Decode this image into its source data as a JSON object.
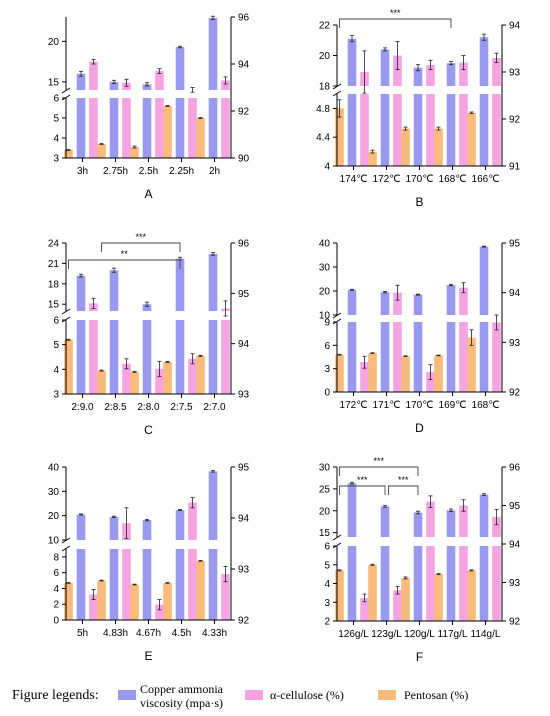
{
  "colors": {
    "viscosity": "#9999f0",
    "cellulose": "#f5a3e3",
    "pentosan": "#f8bb7c",
    "axis": "#000000"
  },
  "chart_data": [
    {
      "panel": "A",
      "type": "bar",
      "categories": [
        "3h",
        "2.75h",
        "2.5h",
        "2.25h",
        "2h"
      ],
      "left_axis": {
        "segments": [
          {
            "range": [
              3,
              6
            ],
            "ticks": [
              3,
              4,
              5,
              6
            ]
          },
          {
            "range": [
              14,
              23
            ],
            "ticks": [
              15,
              20
            ]
          }
        ]
      },
      "right_axis": {
        "range": [
          90,
          96
        ],
        "ticks": [
          90,
          92,
          94,
          96
        ]
      },
      "series": [
        {
          "key": "viscosity",
          "axis": "left",
          "values": [
            16.0,
            15.0,
            14.7,
            19.3,
            22.9
          ],
          "errors": [
            0.3,
            0.2,
            0.2,
            0.1,
            0.2
          ]
        },
        {
          "key": "cellulose",
          "axis": "right",
          "values": [
            94.1,
            93.2,
            93.7,
            92.9,
            93.3
          ],
          "errors": [
            0.1,
            0.15,
            0.1,
            0.1,
            0.15
          ]
        },
        {
          "key": "pentosan",
          "axis": "left",
          "values": [
            3.4,
            3.7,
            3.55,
            5.6,
            5.0
          ],
          "errors": [
            0.02,
            0.02,
            0.05,
            0.02,
            0.02
          ]
        }
      ],
      "significance": []
    },
    {
      "panel": "B",
      "type": "bar",
      "categories": [
        "174℃",
        "172℃",
        "170℃",
        "168℃",
        "166℃"
      ],
      "left_axis": {
        "segments": [
          {
            "range": [
              4.0,
              5.0
            ],
            "ticks": [
              4.0,
              4.4,
              4.8
            ]
          },
          {
            "range": [
              18,
              22
            ],
            "ticks": [
              18,
              20,
              22
            ]
          }
        ]
      },
      "right_axis": {
        "range": [
          91,
          94
        ],
        "ticks": [
          91,
          92,
          93,
          94
        ]
      },
      "series": [
        {
          "key": "viscosity",
          "axis": "left",
          "values": [
            21.1,
            20.4,
            19.2,
            19.5,
            21.2
          ],
          "errors": [
            0.2,
            0.1,
            0.2,
            0.1,
            0.2
          ]
        },
        {
          "key": "cellulose",
          "axis": "right",
          "values": [
            93.0,
            93.35,
            93.15,
            93.2,
            93.3
          ],
          "errors": [
            0.45,
            0.3,
            0.1,
            0.15,
            0.1
          ]
        },
        {
          "key": "pentosan",
          "axis": "left",
          "values": [
            4.8,
            4.2,
            4.52,
            4.52,
            4.74
          ],
          "errors": [
            0.12,
            0.02,
            0.02,
            0.02,
            0.01
          ]
        }
      ],
      "significance": [
        {
          "from": 0,
          "to": 3,
          "label": "***"
        }
      ]
    },
    {
      "panel": "C",
      "type": "bar",
      "categories": [
        "2:9.0",
        "2:8.5",
        "2:8.0",
        "2:7.5",
        "2:7.0"
      ],
      "left_axis": {
        "segments": [
          {
            "range": [
              3,
              6
            ],
            "ticks": [
              3,
              4,
              5,
              6
            ]
          },
          {
            "range": [
              14,
              24
            ],
            "ticks": [
              15,
              18,
              21,
              24
            ]
          }
        ]
      },
      "right_axis": {
        "range": [
          93,
          96
        ],
        "ticks": [
          93,
          94,
          95,
          96
        ]
      },
      "series": [
        {
          "key": "viscosity",
          "axis": "left",
          "values": [
            19.2,
            20.0,
            15.0,
            21.7,
            22.4
          ],
          "errors": [
            0.2,
            0.3,
            0.3,
            0.2,
            0.2
          ]
        },
        {
          "key": "cellulose",
          "axis": "right",
          "values": [
            94.8,
            93.6,
            93.5,
            93.7,
            94.7
          ],
          "errors": [
            0.1,
            0.1,
            0.15,
            0.1,
            0.15
          ]
        },
        {
          "key": "pentosan",
          "axis": "left",
          "values": [
            5.2,
            3.95,
            3.9,
            4.3,
            4.55
          ],
          "errors": [
            0.02,
            0.02,
            0.02,
            0.02,
            0.02
          ]
        }
      ],
      "significance": [
        {
          "from": 1,
          "to": 3,
          "label": "***"
        },
        {
          "from": 0,
          "to": 3,
          "label": "**"
        }
      ]
    },
    {
      "panel": "D",
      "type": "bar",
      "categories": [
        "172℃",
        "171℃",
        "170℃",
        "169℃",
        "168℃"
      ],
      "left_axis": {
        "segments": [
          {
            "range": [
              0,
              9
            ],
            "ticks": [
              0,
              3,
              6,
              9
            ]
          },
          {
            "range": [
              10,
              40
            ],
            "ticks": [
              10,
              20,
              30,
              40
            ]
          }
        ]
      },
      "right_axis": {
        "range": [
          92,
          95
        ],
        "ticks": [
          92,
          93,
          94,
          95
        ]
      },
      "series": [
        {
          "key": "viscosity",
          "axis": "left",
          "values": [
            20.5,
            19.5,
            18.5,
            22.5,
            38.5
          ],
          "errors": [
            0.2,
            0.3,
            0.2,
            0.3,
            0.2
          ]
        },
        {
          "key": "cellulose",
          "axis": "right",
          "values": [
            92.6,
            94.0,
            92.4,
            94.1,
            93.4
          ],
          "errors": [
            0.12,
            0.15,
            0.15,
            0.1,
            0.15
          ]
        },
        {
          "key": "pentosan",
          "axis": "left",
          "values": [
            4.8,
            5.0,
            4.6,
            4.7,
            7.0
          ],
          "errors": [
            0.05,
            0.05,
            0.05,
            0.05,
            1.0
          ]
        }
      ],
      "significance": []
    },
    {
      "panel": "E",
      "type": "bar",
      "categories": [
        "5h",
        "4.83h",
        "4.67h",
        "4.5h",
        "4.33h"
      ],
      "left_axis": {
        "segments": [
          {
            "range": [
              0,
              9
            ],
            "ticks": [
              0,
              2,
              4,
              6,
              8
            ]
          },
          {
            "range": [
              10,
              40
            ],
            "ticks": [
              10,
              20,
              30,
              40
            ]
          }
        ]
      },
      "right_axis": {
        "range": [
          92,
          95
        ],
        "ticks": [
          92,
          93,
          94,
          95
        ]
      },
      "series": [
        {
          "key": "viscosity",
          "axis": "left",
          "values": [
            20.5,
            19.5,
            18.2,
            22.3,
            38.2
          ],
          "errors": [
            0.2,
            0.3,
            0.3,
            0.2,
            0.3
          ]
        },
        {
          "key": "cellulose",
          "axis": "right",
          "values": [
            92.5,
            93.9,
            92.3,
            94.3,
            92.9
          ],
          "errors": [
            0.1,
            0.3,
            0.1,
            0.1,
            0.15
          ]
        },
        {
          "key": "pentosan",
          "axis": "left",
          "values": [
            4.7,
            5.0,
            4.5,
            4.7,
            7.5
          ],
          "errors": [
            0.05,
            0.05,
            0.05,
            0.05,
            0.05
          ]
        }
      ],
      "significance": []
    },
    {
      "panel": "F",
      "type": "bar",
      "categories": [
        "126g/L",
        "123g/L",
        "120g/L",
        "117g/L",
        "114g/L"
      ],
      "left_axis": {
        "segments": [
          {
            "range": [
              2,
              6
            ],
            "ticks": [
              2,
              3,
              4,
              5,
              6
            ]
          },
          {
            "range": [
              14,
              30
            ],
            "ticks": [
              15,
              20,
              25,
              30
            ]
          }
        ]
      },
      "right_axis": {
        "range": [
          92,
          96
        ],
        "ticks": [
          92,
          93,
          94,
          95,
          96
        ]
      },
      "series": [
        {
          "key": "viscosity",
          "axis": "left",
          "values": [
            26.3,
            21.0,
            19.6,
            20.1,
            23.7
          ],
          "errors": [
            0.2,
            0.2,
            0.3,
            0.3,
            0.2
          ]
        },
        {
          "key": "cellulose",
          "axis": "right",
          "values": [
            92.6,
            92.8,
            95.1,
            95.0,
            94.7
          ],
          "errors": [
            0.1,
            0.1,
            0.15,
            0.15,
            0.2
          ]
        },
        {
          "key": "pentosan",
          "axis": "left",
          "values": [
            4.7,
            5.0,
            4.3,
            4.5,
            4.7
          ],
          "errors": [
            0.03,
            0.03,
            0.05,
            0.03,
            0.03
          ]
        }
      ],
      "significance": [
        {
          "from": 0,
          "to": 1,
          "label": "***"
        },
        {
          "from": 1,
          "to": 2,
          "label": "***"
        },
        {
          "from": 0,
          "to": 2,
          "label": "***"
        }
      ]
    }
  ],
  "legend": {
    "title": "Figure legends:",
    "items": [
      {
        "key": "viscosity",
        "label_line1": "Copper ammonia",
        "label_line2": "viscosity (mpa·s)"
      },
      {
        "key": "cellulose",
        "label_line1": "α-cellulose (%)",
        "label_line2": ""
      },
      {
        "key": "pentosan",
        "label_line1": "Pentosan (%)",
        "label_line2": ""
      }
    ]
  }
}
